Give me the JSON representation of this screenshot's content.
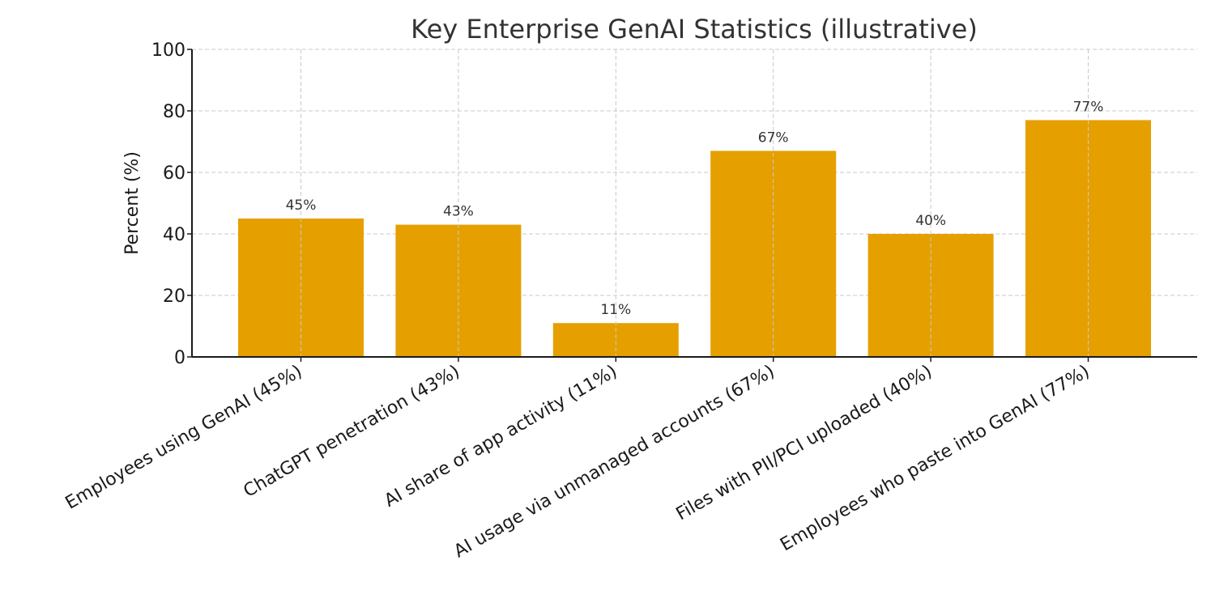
{
  "chart_data": {
    "type": "bar",
    "title": "Key Enterprise GenAI Statistics (illustrative)",
    "xlabel": "",
    "ylabel": "Percent (%)",
    "ylim": [
      0,
      100
    ],
    "yticks": [
      "0",
      "20",
      "40",
      "60",
      "80",
      "100"
    ],
    "grid": true,
    "categories": [
      "Employees using GenAI (45%)",
      "ChatGPT penetration (43%)",
      "AI share of app activity (11%)",
      "AI usage via unmanaged accounts (67%)",
      "Files with PII/PCI uploaded (40%)",
      "Employees who paste into GenAI (77%)"
    ],
    "values": [
      45,
      43,
      11,
      67,
      40,
      77
    ],
    "data_labels": [
      "45%",
      "43%",
      "11%",
      "67%",
      "40%",
      "77%"
    ],
    "colors": {
      "bar": "#E5A000",
      "axis": "#1a1a1a",
      "grid": "#c8c8c8",
      "text": "#333333"
    }
  }
}
